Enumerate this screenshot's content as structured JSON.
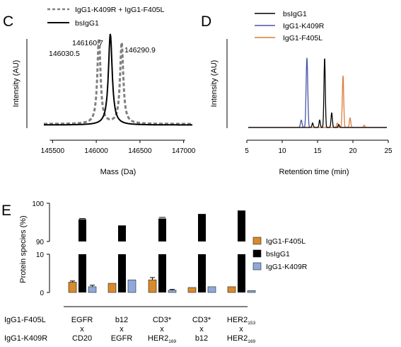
{
  "panels": {
    "c": {
      "letter": "C"
    },
    "d": {
      "letter": "D"
    },
    "e": {
      "letter": "E"
    }
  },
  "chart_data": [
    {
      "panel": "C",
      "type": "line",
      "xlabel": "Mass (Da)",
      "ylabel": "Intensity (AU)",
      "xlim": [
        145400,
        147100
      ],
      "xticks": [
        145500,
        146000,
        146500,
        147000
      ],
      "xtick_labels": [
        "145500",
        "146000",
        "146500",
        "147000"
      ],
      "legend": "top-left",
      "series": [
        {
          "name": "IgG1-K409R + IgG1-F405L",
          "style": "dashed",
          "color": "#808080",
          "peaks": [
            {
              "x": 146030.5,
              "height": 0.86
            },
            {
              "x": 146290.9,
              "height": 0.82
            }
          ]
        },
        {
          "name": "bsIgG1",
          "style": "solid",
          "color": "#000000",
          "peaks": [
            {
              "x": 146160.7,
              "height": 0.92
            }
          ]
        }
      ],
      "annotations": [
        "146030.5",
        "146160.7",
        "146290.9"
      ]
    },
    {
      "panel": "D",
      "type": "line",
      "xlabel": "Retention time (min)",
      "ylabel": "Intensity (AU)",
      "xlim": [
        5,
        25
      ],
      "xticks": [
        5,
        10,
        15,
        20,
        25
      ],
      "xtick_labels": [
        "5",
        "10",
        "15",
        "20",
        "25"
      ],
      "legend": "top-right",
      "series": [
        {
          "name": "bsIgG1",
          "color": "#000000",
          "peaks": [
            {
              "x": 14.3,
              "height": 0.06
            },
            {
              "x": 15.3,
              "height": 0.1
            },
            {
              "x": 16.0,
              "height": 0.94
            },
            {
              "x": 17.0,
              "height": 0.2
            },
            {
              "x": 18.0,
              "height": 0.04
            }
          ]
        },
        {
          "name": "IgG1-K409R",
          "color": "#4a55a8",
          "peaks": [
            {
              "x": 12.7,
              "height": 0.1
            },
            {
              "x": 13.5,
              "height": 0.94
            }
          ]
        },
        {
          "name": "IgG1-F405L",
          "color": "#e07b39",
          "peaks": [
            {
              "x": 17.8,
              "height": 0.06
            },
            {
              "x": 18.6,
              "height": 0.7
            },
            {
              "x": 19.6,
              "height": 0.13
            },
            {
              "x": 21.6,
              "height": 0.03
            }
          ]
        }
      ]
    },
    {
      "panel": "E",
      "type": "bar",
      "ylabel": "Protein species (%)",
      "y_segments": {
        "lower": [
          0,
          10
        ],
        "upper": [
          90,
          100
        ]
      },
      "yticks": [
        0,
        10,
        90,
        100
      ],
      "ytick_labels": [
        "0",
        "10",
        "90",
        "100"
      ],
      "legend": "right",
      "row_labels": [
        "IgG1-F405L",
        "IgG1-K409R"
      ],
      "categories": [
        {
          "top": "EGFR",
          "bottom": "CD20",
          "top_sub": "",
          "bottom_sub": ""
        },
        {
          "top": "b12",
          "bottom": "EGFR",
          "top_sub": "",
          "bottom_sub": ""
        },
        {
          "top": "CD3*",
          "bottom": "HER2",
          "top_sub": "",
          "bottom_sub": "169"
        },
        {
          "top": "CD3*",
          "bottom": "b12",
          "top_sub": "",
          "bottom_sub": ""
        },
        {
          "top": "HER2",
          "bottom": "HER2",
          "top_sub": "153",
          "bottom_sub": "169"
        }
      ],
      "cross": "x",
      "series": [
        {
          "name": "IgG1-F405L",
          "color": "#d98a2b",
          "values": [
            2.7,
            2.4,
            3.3,
            1.3,
            1.5
          ],
          "errors": [
            0.3,
            0,
            0.6,
            0,
            0
          ]
        },
        {
          "name": "bsIgG1",
          "color": "#000000",
          "values": [
            95.8,
            94.2,
            96.0,
            97.2,
            98.1
          ],
          "errors": [
            0.2,
            0,
            0.3,
            0,
            0
          ]
        },
        {
          "name": "IgG1-K409R",
          "color": "#8ea9d9",
          "values": [
            1.5,
            3.3,
            0.6,
            1.5,
            0.5
          ],
          "errors": [
            0.4,
            0,
            0.2,
            0,
            0
          ]
        }
      ]
    }
  ]
}
